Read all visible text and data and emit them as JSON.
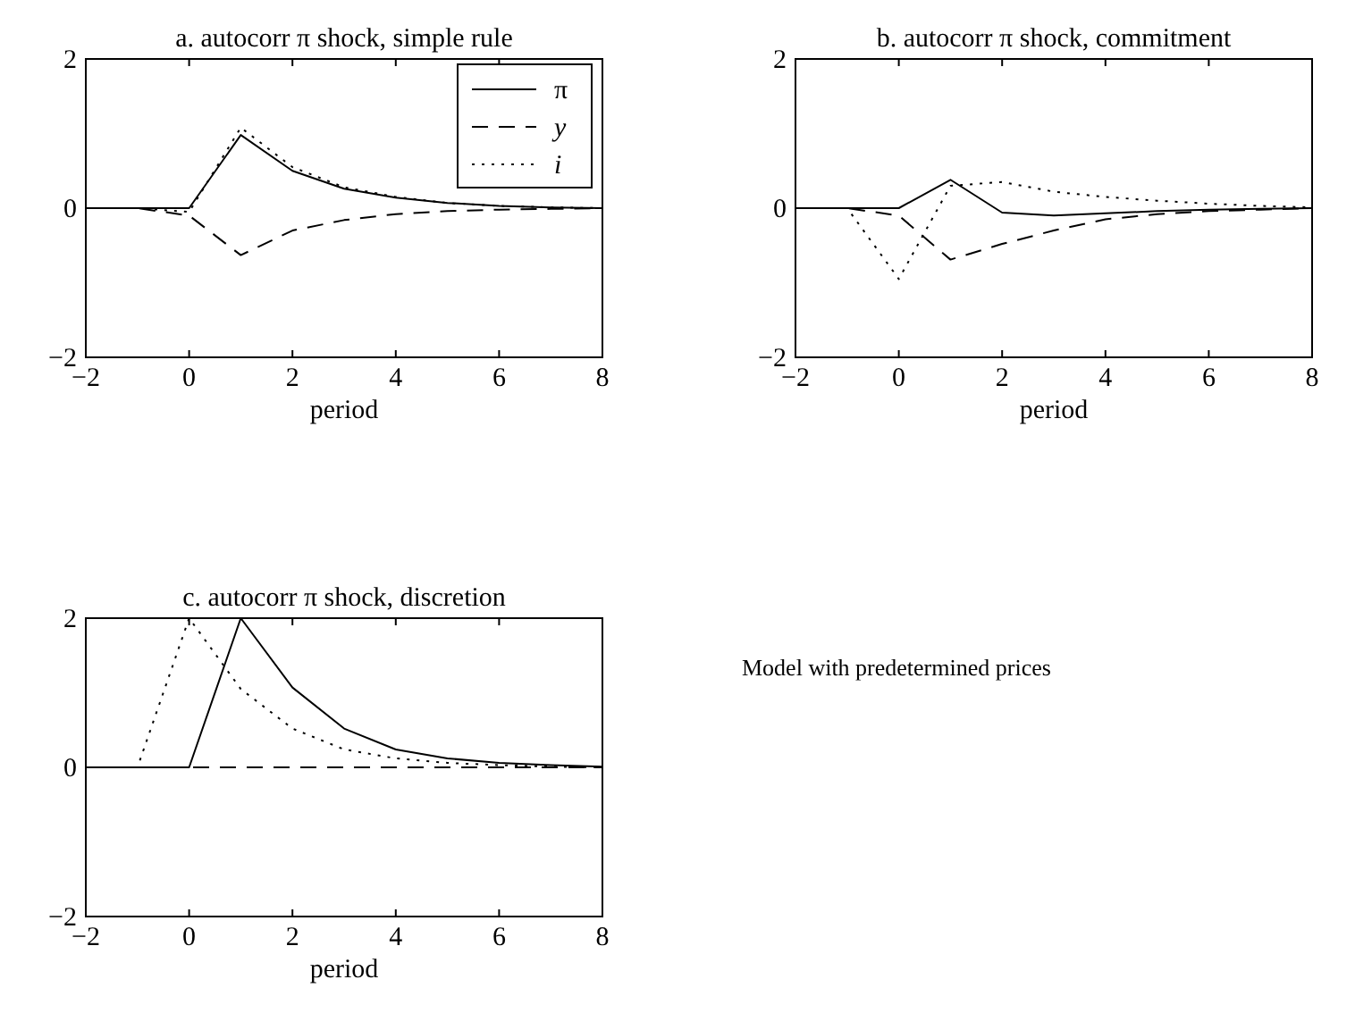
{
  "chart_data": [
    {
      "type": "line",
      "title": "a. autocorr π shock, simple rule",
      "xlabel": "period",
      "x": [
        -2,
        -1,
        0,
        1,
        2,
        3,
        4,
        5,
        6,
        7,
        8
      ],
      "xlim": [
        -2,
        8
      ],
      "xticks": [
        -2,
        0,
        2,
        4,
        6,
        8
      ],
      "ylim": [
        -2,
        2
      ],
      "yticks": [
        -2,
        0,
        2
      ],
      "legend": "top right",
      "grid": false,
      "series": [
        {
          "name": "π",
          "color": "#000000",
          "line_style": "solid",
          "values": [
            0,
            0,
            0,
            0.98,
            0.5,
            0.26,
            0.14,
            0.07,
            0.03,
            0.01,
            0
          ]
        },
        {
          "name": "y",
          "color": "#000000",
          "line_style": "dashed",
          "values": [
            0,
            0,
            -0.1,
            -0.63,
            -0.3,
            -0.16,
            -0.08,
            -0.04,
            -0.02,
            -0.01,
            0
          ]
        },
        {
          "name": "i",
          "color": "#000000",
          "line_style": "dotted",
          "values": [
            0,
            0,
            -0.05,
            1.08,
            0.55,
            0.28,
            0.15,
            0.07,
            0.03,
            0.01,
            0
          ]
        }
      ]
    },
    {
      "type": "line",
      "title": "b. autocorr π shock, commitment",
      "xlabel": "period",
      "x": [
        -2,
        -1,
        0,
        1,
        2,
        3,
        4,
        5,
        6,
        7,
        8
      ],
      "xlim": [
        -2,
        8
      ],
      "xticks": [
        -2,
        0,
        2,
        4,
        6,
        8
      ],
      "ylim": [
        -2,
        2
      ],
      "yticks": [
        -2,
        0,
        2
      ],
      "legend": false,
      "grid": false,
      "series": [
        {
          "color": "#000000",
          "line_style": "solid",
          "values": [
            0,
            0,
            0,
            0.38,
            -0.06,
            -0.1,
            -0.07,
            -0.04,
            -0.02,
            -0.01,
            0
          ]
        },
        {
          "color": "#000000",
          "line_style": "dashed",
          "values": [
            0,
            0,
            -0.1,
            -0.69,
            -0.48,
            -0.3,
            -0.15,
            -0.08,
            -0.04,
            -0.02,
            0
          ]
        },
        {
          "color": "#000000",
          "line_style": "dotted",
          "values": [
            0,
            0,
            -0.95,
            0.3,
            0.35,
            0.22,
            0.15,
            0.1,
            0.06,
            0.03,
            0.01
          ]
        }
      ]
    },
    {
      "type": "line",
      "title": "c. autocorr π shock, discretion",
      "xlabel": "period",
      "x": [
        -2,
        -1,
        0,
        1,
        2,
        3,
        4,
        5,
        6,
        7,
        8
      ],
      "xlim": [
        -2,
        8
      ],
      "xticks": [
        -2,
        0,
        2,
        4,
        6,
        8
      ],
      "ylim": [
        -2,
        2
      ],
      "yticks": [
        -2,
        0,
        2
      ],
      "legend": false,
      "grid": false,
      "series": [
        {
          "color": "#000000",
          "line_style": "solid",
          "values": [
            0,
            0,
            0,
            2,
            1.07,
            0.52,
            0.24,
            0.12,
            0.06,
            0.03,
            0.01
          ]
        },
        {
          "color": "#000000",
          "line_style": "dashed",
          "values": [
            0,
            0,
            0,
            0,
            0,
            0,
            0,
            0,
            0,
            0,
            0
          ]
        },
        {
          "color": "#000000",
          "line_style": "dotted",
          "values": [
            0,
            0,
            2,
            1.05,
            0.52,
            0.24,
            0.12,
            0.06,
            0.03,
            0.01,
            0
          ]
        }
      ]
    },
    {
      "type": "other",
      "annotations": [
        "Model with predetermined prices"
      ]
    }
  ]
}
